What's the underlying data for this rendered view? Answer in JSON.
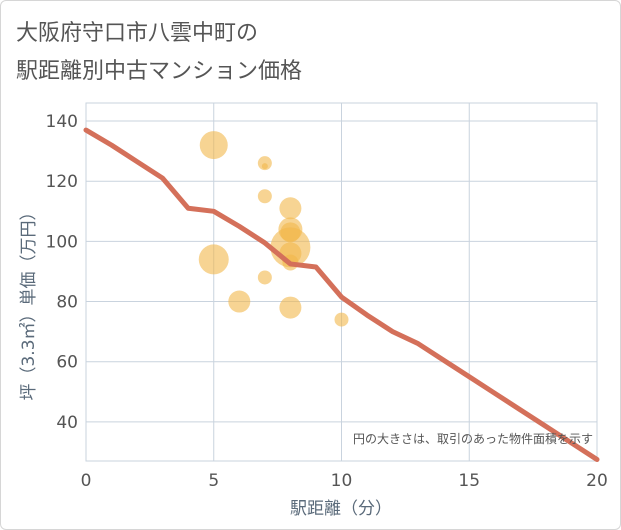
{
  "chart_data": {
    "type": "scatter",
    "title_lines": [
      "大阪府守口市八雲中町の",
      "駅距離別中古マンション価格"
    ],
    "xlabel": "駅距離（分）",
    "ylabel": "坪（3.3㎡）単価（万円）",
    "xlim": [
      0,
      20
    ],
    "ylim": [
      27,
      146
    ],
    "x_ticks": [
      0,
      5,
      10,
      15,
      20
    ],
    "y_ticks": [
      40,
      60,
      80,
      100,
      120,
      140
    ],
    "grid": true,
    "note": "円の大きさは、取引のあった物件面積を示す",
    "bubble_color": "#f2b84b",
    "line_color": "#d4705a",
    "points": [
      {
        "x": 5,
        "y": 132,
        "size": 14
      },
      {
        "x": 5,
        "y": 94,
        "size": 15
      },
      {
        "x": 6,
        "y": 80,
        "size": 11
      },
      {
        "x": 7,
        "y": 126,
        "size": 7
      },
      {
        "x": 7,
        "y": 125,
        "size": 3
      },
      {
        "x": 7,
        "y": 115,
        "size": 7
      },
      {
        "x": 7,
        "y": 88,
        "size": 7
      },
      {
        "x": 8,
        "y": 111,
        "size": 11
      },
      {
        "x": 8,
        "y": 104,
        "size": 12
      },
      {
        "x": 8,
        "y": 103,
        "size": 10
      },
      {
        "x": 8,
        "y": 98,
        "size": 20
      },
      {
        "x": 8,
        "y": 96,
        "size": 11
      },
      {
        "x": 8,
        "y": 93,
        "size": 8
      },
      {
        "x": 8,
        "y": 78,
        "size": 11
      },
      {
        "x": 10,
        "y": 74,
        "size": 7
      }
    ],
    "trend": {
      "name": "trend",
      "x": [
        0,
        1,
        2,
        3,
        4,
        5,
        6,
        7,
        8,
        9,
        10,
        11,
        12,
        13,
        14,
        15,
        16,
        17,
        18,
        19,
        20
      ],
      "y": [
        137,
        132,
        126.5,
        121,
        111,
        110,
        105,
        99.5,
        92.5,
        91.5,
        81.5,
        75.5,
        70,
        66,
        60.5,
        55,
        49.5,
        44,
        38.5,
        33,
        27.5
      ]
    }
  }
}
